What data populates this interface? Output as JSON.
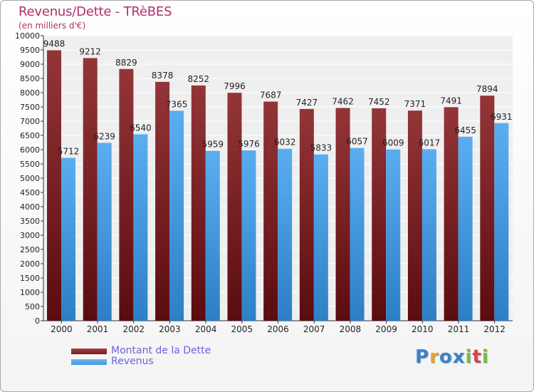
{
  "header": {
    "title": "Revenus/Dette - TRèBES",
    "subtitle": "(en milliers d'€)"
  },
  "logo": {
    "text": "Proxiti",
    "letter_colors": [
      "#3a82c8",
      "#f0a020",
      "#3a82c8",
      "#3a82c8",
      "#7cbe32",
      "#e04050",
      "#7cbe32"
    ]
  },
  "colors": {
    "debt": "#7a1e22",
    "debt_light": "#a04042",
    "revenue": "#3e97df",
    "revenue_light": "#6db8f0",
    "title": "#b0306a",
    "legend_text": "#6b63d9"
  },
  "legend": {
    "items": [
      {
        "label": "Montant de la Dette",
        "color": "#7a1e22"
      },
      {
        "label": "Revenus",
        "color": "#3e97df"
      }
    ]
  },
  "chart_data": {
    "type": "bar",
    "title": "Revenus/Dette - TRèBES",
    "subtitle": "(en milliers d'€)",
    "categories": [
      "2000",
      "2001",
      "2002",
      "2003",
      "2004",
      "2005",
      "2006",
      "2007",
      "2008",
      "2009",
      "2010",
      "2011",
      "2012"
    ],
    "series": [
      {
        "name": "Montant de la Dette",
        "values": [
          9488,
          9212,
          8829,
          8378,
          8252,
          7996,
          7687,
          7427,
          7462,
          7452,
          7371,
          7491,
          7894
        ]
      },
      {
        "name": "Revenus",
        "values": [
          5712,
          6239,
          6540,
          7365,
          5959,
          5976,
          6032,
          5833,
          6057,
          6009,
          6017,
          6455,
          6931
        ]
      }
    ],
    "ylim": [
      0,
      10000
    ],
    "ytick_step": 500,
    "grid": true,
    "xlabel": "",
    "ylabel": ""
  }
}
